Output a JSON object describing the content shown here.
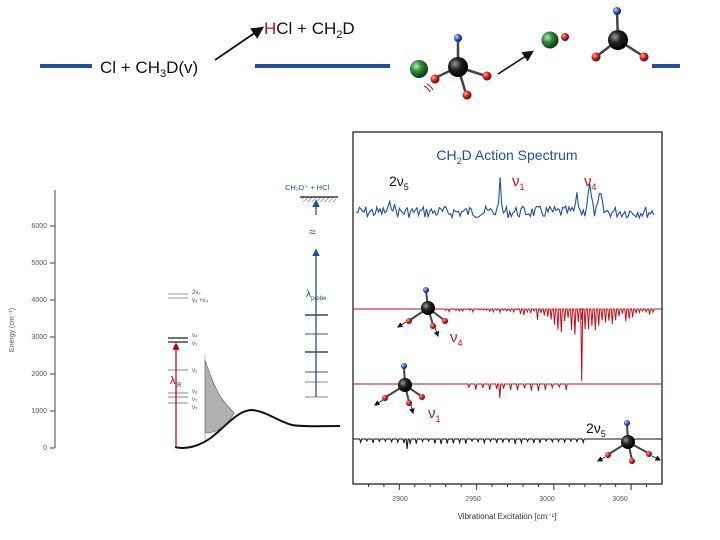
{
  "reaction": {
    "reactants": "Cl + CH3D(v)",
    "reactant_parts": {
      "pre": "Cl + CH",
      "sub": "3",
      "post": "D(v)"
    },
    "products": "HCl + CH2D",
    "product_parts": {
      "a": "H",
      "b": "Cl + CH",
      "sub": "2",
      "post": "D"
    }
  },
  "colors": {
    "blue": "#1f4fa3",
    "red": "#c0111a",
    "dark": "#111111"
  },
  "energy_diagram": {
    "ylabel": "Energy (cm⁻¹)",
    "ticks": [
      "0",
      "1000",
      "2000",
      "3000",
      "4000",
      "5000",
      "6000"
    ],
    "levels": {
      "two_nu2": "2ν₂",
      "nu3_nu4": "ν₃ +ν₄",
      "nu4": "ν₄",
      "nu1": "ν₁",
      "nu2": "ν₂",
      "nu6": "ν₆",
      "nu3": "ν₃",
      "nu5": "ν₅"
    },
    "lambda_ir": "λ",
    "lambda_ir_sub": "IR",
    "lambda_probe": "λ",
    "lambda_probe_sub": "probe",
    "ion_label": "CH₂D⁺ + HCl",
    "break_symbol": "≈"
  },
  "spectrum": {
    "title_parts": {
      "pre": "CH",
      "sub": "2",
      "post": "D Action Spectrum"
    },
    "title": "CH2D Action Spectrum",
    "peak_labels": {
      "two_nu5": {
        "main": "2ν",
        "sub": "5"
      },
      "nu1": {
        "main": "ν",
        "sub": "1"
      },
      "nu4": {
        "main": "ν",
        "sub": "4"
      }
    },
    "trace_labels": {
      "nu4": {
        "main": "ν",
        "sub": "4"
      },
      "nu1": {
        "main": "ν",
        "sub": "1"
      },
      "two_nu5": {
        "main": "2ν",
        "sub": "5"
      }
    },
    "x_ticks": [
      "2900",
      "2950",
      "3000",
      "3050"
    ],
    "xlabel": "Vibrational Excitation [cm⁻¹]"
  },
  "chart_data": {
    "type": "line",
    "title": "CH2D Action Spectrum",
    "xlabel": "Vibrational Excitation [cm⁻¹]",
    "ylabel": "",
    "xlim": [
      2870,
      3070
    ],
    "x_ticks": [
      2900,
      2950,
      3000,
      3050
    ],
    "series": [
      {
        "name": "Action spectrum",
        "peaks": [
          {
            "label": "2ν5",
            "x": 2895
          },
          {
            "label": "ν1",
            "x": 2965
          },
          {
            "label": "ν4",
            "x": 3023
          }
        ]
      },
      {
        "name": "ν4 simulated",
        "strongest_x": 3018
      },
      {
        "name": "ν1 simulated",
        "strongest_x": 2965
      },
      {
        "name": "2ν5 simulated",
        "strongest_x": 2905
      }
    ]
  }
}
